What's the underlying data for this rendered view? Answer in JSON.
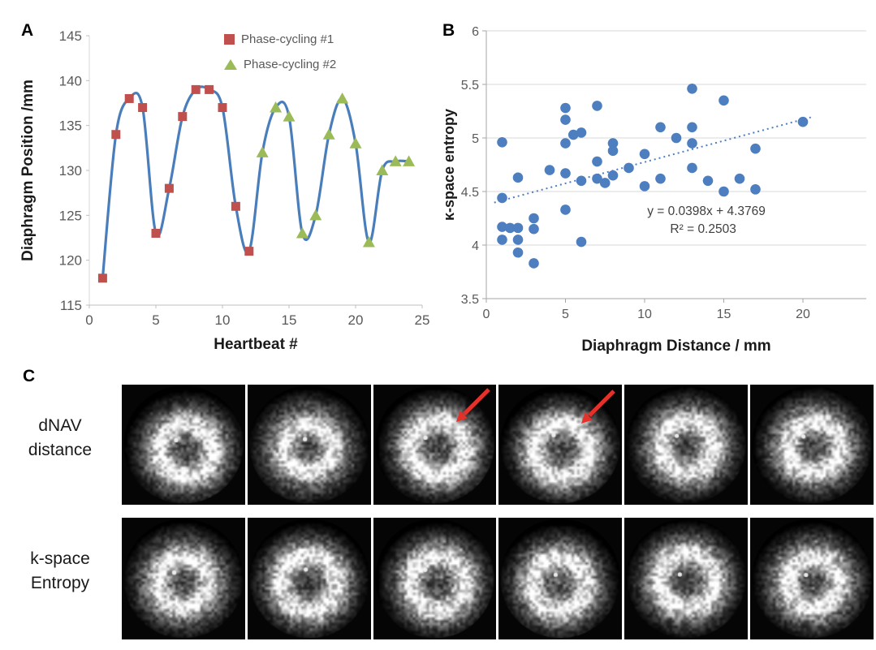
{
  "panels": {
    "a": {
      "label": "A"
    },
    "b": {
      "label": "B"
    },
    "c": {
      "label": "C",
      "row_labels": [
        "dNAV distance",
        "k-space Entropy"
      ],
      "arrow_color": "#e5312a",
      "images_per_row": 6
    }
  },
  "chart_data": [
    {
      "type": "line",
      "title": "",
      "xlabel": "Heartbeat #",
      "ylabel": "Diaphragm Position /mm",
      "xlim": [
        0,
        25
      ],
      "ylim": [
        115,
        145
      ],
      "xticks": [
        0,
        5,
        10,
        15,
        20,
        25
      ],
      "yticks": [
        115,
        120,
        125,
        130,
        135,
        140,
        145
      ],
      "grid": false,
      "line_color": "#4a7ebb",
      "legend_position": "top-inside",
      "series": [
        {
          "name": "Phase-cycling #1",
          "marker": "square",
          "color": "#c0504d",
          "x": [
            1,
            2,
            3,
            4,
            5,
            6,
            7,
            8,
            9,
            10,
            11,
            12
          ],
          "y": [
            118,
            134,
            138,
            137,
            123,
            128,
            136,
            139,
            139,
            137,
            126,
            121
          ]
        },
        {
          "name": "Phase-cycling #2",
          "marker": "triangle",
          "color": "#9bbb59",
          "x": [
            13,
            14,
            15,
            16,
            17,
            18,
            19,
            20,
            21,
            22,
            23,
            24
          ],
          "y": [
            132,
            137,
            136,
            123,
            125,
            134,
            138,
            133,
            122,
            130,
            131,
            131
          ]
        }
      ]
    },
    {
      "type": "scatter",
      "title": "",
      "xlabel": "Diaphragm Distance / mm",
      "ylabel": "κ-space entropy",
      "xlim": [
        0,
        24
      ],
      "ylim": [
        3.5,
        6
      ],
      "xticks": [
        0,
        5,
        10,
        15,
        20
      ],
      "yticks": [
        3.5,
        4,
        4.5,
        5,
        5.5,
        6
      ],
      "grid": true,
      "point_color": "#4d7ebf",
      "points": [
        [
          1,
          4.96
        ],
        [
          1,
          4.44
        ],
        [
          1,
          4.17
        ],
        [
          1,
          4.05
        ],
        [
          1.5,
          4.16
        ],
        [
          2,
          4.63
        ],
        [
          2,
          4.16
        ],
        [
          2,
          4.05
        ],
        [
          2,
          3.93
        ],
        [
          3,
          4.25
        ],
        [
          3,
          4.15
        ],
        [
          3,
          3.83
        ],
        [
          4,
          4.7
        ],
        [
          5,
          5.28
        ],
        [
          5,
          5.17
        ],
        [
          5,
          4.95
        ],
        [
          5,
          4.67
        ],
        [
          5,
          4.33
        ],
        [
          5.5,
          5.03
        ],
        [
          6,
          5.05
        ],
        [
          6,
          4.6
        ],
        [
          6,
          4.03
        ],
        [
          7,
          5.3
        ],
        [
          7,
          4.78
        ],
        [
          7,
          4.62
        ],
        [
          7.5,
          4.58
        ],
        [
          8,
          4.95
        ],
        [
          8,
          4.88
        ],
        [
          8,
          4.65
        ],
        [
          9,
          4.72
        ],
        [
          10,
          4.85
        ],
        [
          10,
          4.55
        ],
        [
          11,
          5.1
        ],
        [
          11,
          4.62
        ],
        [
          12,
          5.0
        ],
        [
          13,
          5.46
        ],
        [
          13,
          5.1
        ],
        [
          13,
          4.95
        ],
        [
          13,
          4.72
        ],
        [
          14,
          4.6
        ],
        [
          15,
          5.35
        ],
        [
          15,
          4.5
        ],
        [
          16,
          4.62
        ],
        [
          17,
          4.9
        ],
        [
          17,
          4.52
        ],
        [
          20,
          5.15
        ]
      ],
      "trendline": {
        "slope": 0.0398,
        "intercept": 4.3769,
        "style": "dotted",
        "color": "#4d7ebf",
        "x_range": [
          0.5,
          20.5
        ],
        "equation_label": "y = 0.0398x + 4.3769",
        "r2_label": "R² = 0.2503",
        "equation_anchor": [
          13.9,
          4.28
        ],
        "r2_anchor": [
          13.7,
          4.115
        ]
      }
    }
  ]
}
